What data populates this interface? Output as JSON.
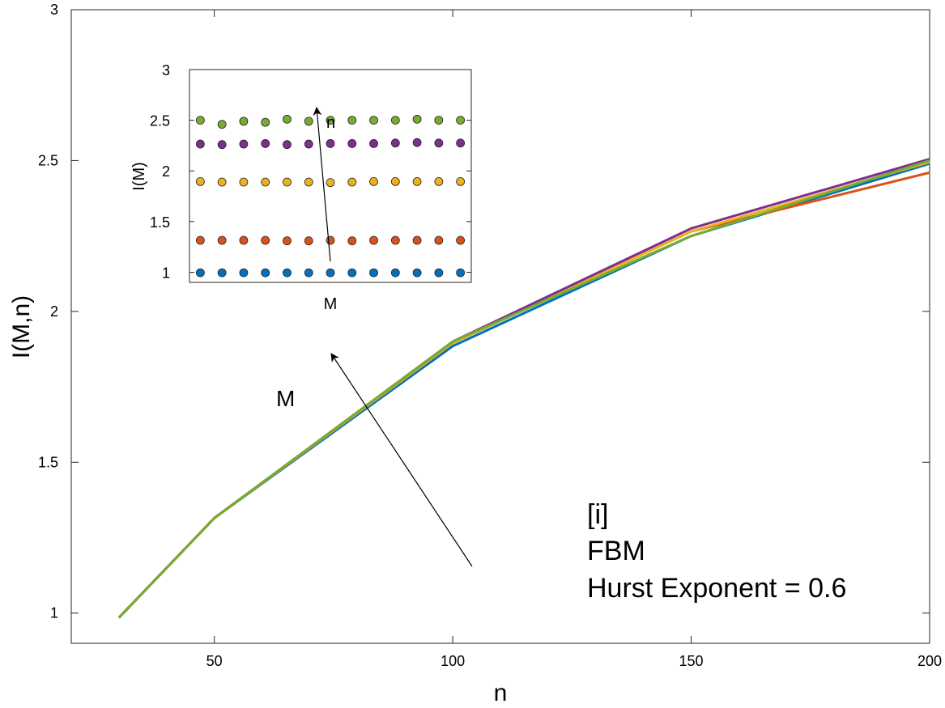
{
  "chart_data": [
    {
      "type": "line",
      "xlabel": "n",
      "ylabel": "I(M,n)",
      "xlim": [
        20,
        200
      ],
      "ylim": [
        0.9,
        3.0
      ],
      "xticks": [
        50,
        100,
        150,
        200
      ],
      "yticks": [
        1,
        1.5,
        2,
        2.5,
        3
      ],
      "xtick_labels": [
        "50",
        "100",
        "150",
        "200"
      ],
      "ytick_labels": [
        "1",
        "1.5",
        "2",
        "2.5",
        "3"
      ],
      "grid": false,
      "x": [
        30,
        50,
        100,
        150,
        200
      ],
      "series": [
        {
          "color": "#0072BD",
          "values": [
            0.985,
            1.315,
            1.885,
            2.25,
            2.49
          ]
        },
        {
          "color": "#D95319",
          "values": [
            0.985,
            1.315,
            1.895,
            2.265,
            2.46
          ]
        },
        {
          "color": "#EDB120",
          "values": [
            0.985,
            1.315,
            1.895,
            2.265,
            2.495
          ]
        },
        {
          "color": "#7E2F8E",
          "values": [
            0.985,
            1.315,
            1.9,
            2.275,
            2.505
          ]
        },
        {
          "color": "#77AC30",
          "values": [
            0.985,
            1.315,
            1.9,
            2.25,
            2.5
          ]
        }
      ],
      "annotations": {
        "arrow_label": "M",
        "text_lines": [
          "[i]",
          "FBM",
          "Hurst Exponent = 0.6"
        ]
      }
    },
    {
      "type": "scatter",
      "inset": true,
      "xlabel": "M",
      "ylabel": "I(M)",
      "ylim": [
        0.9,
        3.0
      ],
      "yticks": [
        1,
        1.5,
        2,
        2.5,
        3
      ],
      "ytick_labels": [
        "1",
        "1.5",
        "2",
        "2.5",
        "3"
      ],
      "grid": false,
      "x": [
        1,
        2,
        3,
        4,
        5,
        6,
        7,
        8,
        9,
        10,
        11,
        12,
        13
      ],
      "xlim": [
        0.5,
        13.5
      ],
      "series": [
        {
          "color": "#0072BD",
          "values": [
            0.995,
            0.995,
            0.995,
            0.995,
            0.995,
            0.995,
            0.995,
            0.995,
            0.995,
            0.995,
            0.995,
            0.995,
            0.995
          ]
        },
        {
          "color": "#D95319",
          "values": [
            1.315,
            1.315,
            1.315,
            1.315,
            1.31,
            1.31,
            1.315,
            1.31,
            1.315,
            1.315,
            1.315,
            1.315,
            1.315
          ]
        },
        {
          "color": "#EDB120",
          "values": [
            1.895,
            1.89,
            1.89,
            1.89,
            1.89,
            1.89,
            1.885,
            1.89,
            1.895,
            1.895,
            1.895,
            1.895,
            1.895
          ]
        },
        {
          "color": "#7E2F8E",
          "values": [
            2.265,
            2.26,
            2.265,
            2.27,
            2.26,
            2.265,
            2.27,
            2.27,
            2.27,
            2.275,
            2.28,
            2.275,
            2.275
          ]
        },
        {
          "color": "#77AC30",
          "values": [
            2.5,
            2.46,
            2.49,
            2.48,
            2.51,
            2.49,
            2.5,
            2.5,
            2.5,
            2.5,
            2.51,
            2.5,
            2.5
          ]
        }
      ],
      "annotations": {
        "arrow_label": "n"
      }
    }
  ]
}
